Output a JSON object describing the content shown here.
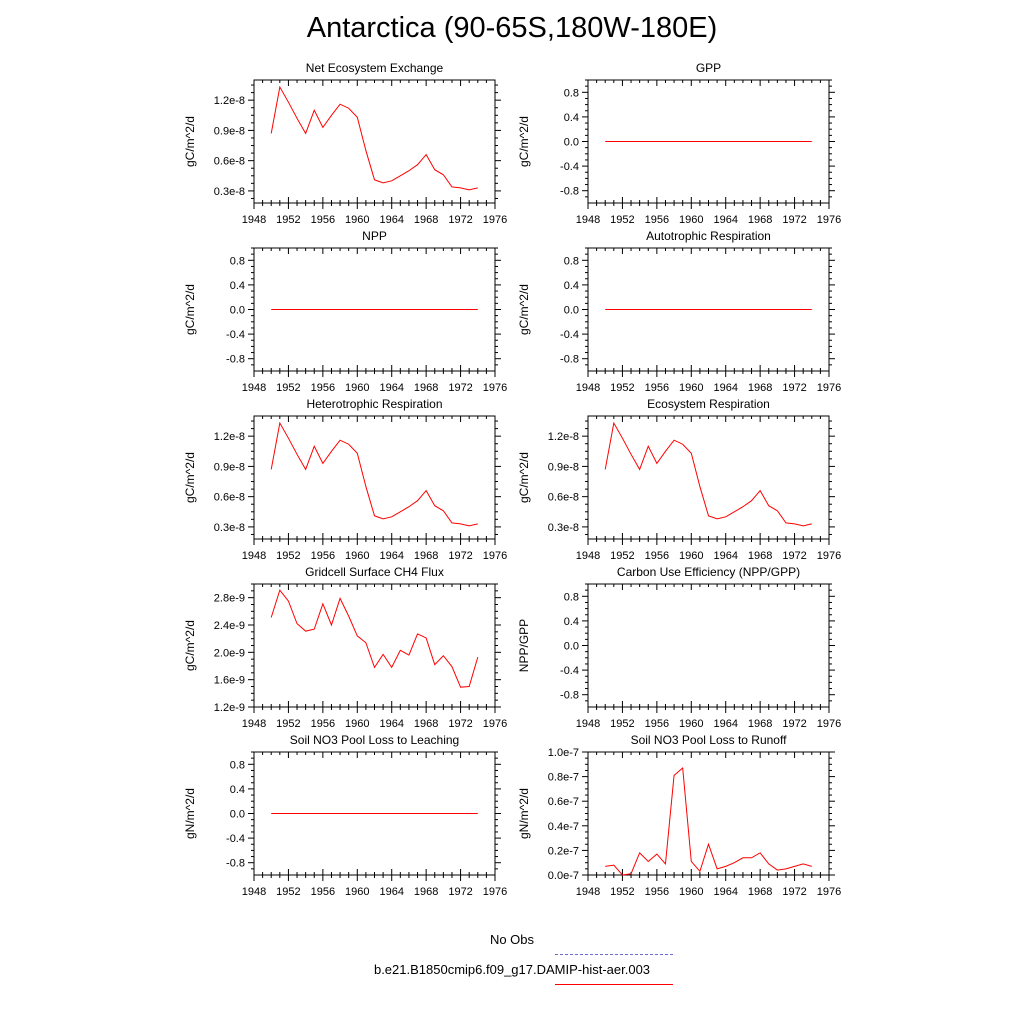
{
  "title": "Antarctica (90-65S,180W-180E)",
  "legend": {
    "obs_label": "No Obs",
    "obs_color": "#6b6bd6",
    "run_label": "b.e21.B1850cmip6.f09_g17.DAMIP-hist-aer.003",
    "run_color": "#ff0000"
  },
  "chart_data": [
    {
      "type": "line",
      "title": "Net Ecosystem Exchange",
      "ylabel": "gC/m^2/d",
      "xlim": [
        1948,
        1976
      ],
      "xticks": [
        "1948",
        "1952",
        "1956",
        "1960",
        "1964",
        "1968",
        "1972",
        "1976"
      ],
      "ylim": [
        1.8e-09,
        1.4e-08
      ],
      "yticks": [
        {
          "v": 3e-09,
          "label": "0.3e-8"
        },
        {
          "v": 6e-09,
          "label": "0.6e-8"
        },
        {
          "v": 9e-09,
          "label": "0.9e-8"
        },
        {
          "v": 1.2e-08,
          "label": "1.2e-8"
        }
      ],
      "series": [
        {
          "color": "#ff0000",
          "x": [
            1950,
            1951,
            1952,
            1953,
            1954,
            1955,
            1956,
            1957,
            1958,
            1959,
            1960,
            1961,
            1962,
            1963,
            1964,
            1965,
            1966,
            1967,
            1968,
            1969,
            1970,
            1971,
            1972,
            1973,
            1974
          ],
          "values": [
            8.7e-09,
            1.33e-08,
            1.18e-08,
            1.02e-08,
            8.7e-09,
            1.1e-08,
            9.3e-09,
            1.05e-08,
            1.16e-08,
            1.12e-08,
            1.03e-08,
            7e-09,
            4.1e-09,
            3.8e-09,
            4e-09,
            4.5e-09,
            5e-09,
            5.6e-09,
            6.6e-09,
            5.1e-09,
            4.6e-09,
            3.4e-09,
            3.3e-09,
            3.1e-09,
            3.3e-09
          ]
        }
      ]
    },
    {
      "type": "line",
      "title": "GPP",
      "ylabel": "gC/m^2/d",
      "xlim": [
        1948,
        1976
      ],
      "xticks": [
        "1948",
        "1952",
        "1956",
        "1960",
        "1964",
        "1968",
        "1972",
        "1976"
      ],
      "ylim": [
        -1.0,
        1.0
      ],
      "yticks": [
        {
          "v": -0.8,
          "label": "-0.8"
        },
        {
          "v": -0.4,
          "label": "-0.4"
        },
        {
          "v": 0,
          "label": "0.0"
        },
        {
          "v": 0.4,
          "label": "0.4"
        },
        {
          "v": 0.8,
          "label": "0.8"
        }
      ],
      "series": [
        {
          "color": "#ff0000",
          "x": [
            1950,
            1974
          ],
          "values": [
            0,
            0
          ]
        }
      ]
    },
    {
      "type": "line",
      "title": "NPP",
      "ylabel": "gC/m^2/d",
      "xlim": [
        1948,
        1976
      ],
      "xticks": [
        "1948",
        "1952",
        "1956",
        "1960",
        "1964",
        "1968",
        "1972",
        "1976"
      ],
      "ylim": [
        -1.0,
        1.0
      ],
      "yticks": [
        {
          "v": -0.8,
          "label": "-0.8"
        },
        {
          "v": -0.4,
          "label": "-0.4"
        },
        {
          "v": 0,
          "label": "0.0"
        },
        {
          "v": 0.4,
          "label": "0.4"
        },
        {
          "v": 0.8,
          "label": "0.8"
        }
      ],
      "series": [
        {
          "color": "#ff0000",
          "x": [
            1950,
            1974
          ],
          "values": [
            0,
            0
          ]
        }
      ]
    },
    {
      "type": "line",
      "title": "Autotrophic Respiration",
      "ylabel": "gC/m^2/d",
      "xlim": [
        1948,
        1976
      ],
      "xticks": [
        "1948",
        "1952",
        "1956",
        "1960",
        "1964",
        "1968",
        "1972",
        "1976"
      ],
      "ylim": [
        -1.0,
        1.0
      ],
      "yticks": [
        {
          "v": -0.8,
          "label": "-0.8"
        },
        {
          "v": -0.4,
          "label": "-0.4"
        },
        {
          "v": 0,
          "label": "0.0"
        },
        {
          "v": 0.4,
          "label": "0.4"
        },
        {
          "v": 0.8,
          "label": "0.8"
        }
      ],
      "series": [
        {
          "color": "#ff0000",
          "x": [
            1950,
            1974
          ],
          "values": [
            0,
            0
          ]
        }
      ]
    },
    {
      "type": "line",
      "title": "Heterotrophic Respiration",
      "ylabel": "gC/m^2/d",
      "xlim": [
        1948,
        1976
      ],
      "xticks": [
        "1948",
        "1952",
        "1956",
        "1960",
        "1964",
        "1968",
        "1972",
        "1976"
      ],
      "ylim": [
        1.8e-09,
        1.4e-08
      ],
      "yticks": [
        {
          "v": 3e-09,
          "label": "0.3e-8"
        },
        {
          "v": 6e-09,
          "label": "0.6e-8"
        },
        {
          "v": 9e-09,
          "label": "0.9e-8"
        },
        {
          "v": 1.2e-08,
          "label": "1.2e-8"
        }
      ],
      "series": [
        {
          "color": "#ff0000",
          "x": [
            1950,
            1951,
            1952,
            1953,
            1954,
            1955,
            1956,
            1957,
            1958,
            1959,
            1960,
            1961,
            1962,
            1963,
            1964,
            1965,
            1966,
            1967,
            1968,
            1969,
            1970,
            1971,
            1972,
            1973,
            1974
          ],
          "values": [
            8.7e-09,
            1.33e-08,
            1.18e-08,
            1.02e-08,
            8.7e-09,
            1.1e-08,
            9.3e-09,
            1.05e-08,
            1.16e-08,
            1.12e-08,
            1.03e-08,
            7e-09,
            4.1e-09,
            3.8e-09,
            4e-09,
            4.5e-09,
            5e-09,
            5.6e-09,
            6.6e-09,
            5.1e-09,
            4.6e-09,
            3.4e-09,
            3.3e-09,
            3.1e-09,
            3.3e-09
          ]
        }
      ]
    },
    {
      "type": "line",
      "title": "Ecosystem Respiration",
      "ylabel": "gC/m^2/d",
      "xlim": [
        1948,
        1976
      ],
      "xticks": [
        "1948",
        "1952",
        "1956",
        "1960",
        "1964",
        "1968",
        "1972",
        "1976"
      ],
      "ylim": [
        1.8e-09,
        1.4e-08
      ],
      "yticks": [
        {
          "v": 3e-09,
          "label": "0.3e-8"
        },
        {
          "v": 6e-09,
          "label": "0.6e-8"
        },
        {
          "v": 9e-09,
          "label": "0.9e-8"
        },
        {
          "v": 1.2e-08,
          "label": "1.2e-8"
        }
      ],
      "series": [
        {
          "color": "#ff0000",
          "x": [
            1950,
            1951,
            1952,
            1953,
            1954,
            1955,
            1956,
            1957,
            1958,
            1959,
            1960,
            1961,
            1962,
            1963,
            1964,
            1965,
            1966,
            1967,
            1968,
            1969,
            1970,
            1971,
            1972,
            1973,
            1974
          ],
          "values": [
            8.7e-09,
            1.33e-08,
            1.18e-08,
            1.02e-08,
            8.7e-09,
            1.1e-08,
            9.3e-09,
            1.05e-08,
            1.16e-08,
            1.12e-08,
            1.03e-08,
            7e-09,
            4.1e-09,
            3.8e-09,
            4e-09,
            4.5e-09,
            5e-09,
            5.6e-09,
            6.6e-09,
            5.1e-09,
            4.6e-09,
            3.4e-09,
            3.3e-09,
            3.1e-09,
            3.3e-09
          ]
        }
      ]
    },
    {
      "type": "line",
      "title": "Gridcell Surface CH4 Flux",
      "ylabel": "gC/m^2/d",
      "xlim": [
        1948,
        1976
      ],
      "xticks": [
        "1948",
        "1952",
        "1956",
        "1960",
        "1964",
        "1968",
        "1972",
        "1976"
      ],
      "ylim": [
        1.2e-09,
        3e-09
      ],
      "yticks": [
        {
          "v": 1.2e-09,
          "label": "1.2e-9"
        },
        {
          "v": 1.6e-09,
          "label": "1.6e-9"
        },
        {
          "v": 2e-09,
          "label": "2.0e-9"
        },
        {
          "v": 2.4e-09,
          "label": "2.4e-9"
        },
        {
          "v": 2.8e-09,
          "label": "2.8e-9"
        }
      ],
      "series": [
        {
          "color": "#ff0000",
          "x": [
            1950,
            1951,
            1952,
            1953,
            1954,
            1955,
            1956,
            1957,
            1958,
            1959,
            1960,
            1961,
            1962,
            1963,
            1964,
            1965,
            1966,
            1967,
            1968,
            1969,
            1970,
            1971,
            1972,
            1973,
            1974
          ],
          "values": [
            2.51e-09,
            2.91e-09,
            2.75e-09,
            2.42e-09,
            2.31e-09,
            2.34e-09,
            2.71e-09,
            2.4e-09,
            2.79e-09,
            2.53e-09,
            2.24e-09,
            2.14e-09,
            1.78e-09,
            1.97e-09,
            1.78e-09,
            2.03e-09,
            1.96e-09,
            2.27e-09,
            2.21e-09,
            1.82e-09,
            1.95e-09,
            1.79e-09,
            1.49e-09,
            1.5e-09,
            1.93e-09
          ]
        }
      ]
    },
    {
      "type": "line",
      "title": "Carbon Use Efficiency (NPP/GPP)",
      "ylabel": "NPP/GPP",
      "xlim": [
        1948,
        1976
      ],
      "xticks": [
        "1948",
        "1952",
        "1956",
        "1960",
        "1964",
        "1968",
        "1972",
        "1976"
      ],
      "ylim": [
        -1.0,
        1.0
      ],
      "yticks": [
        {
          "v": -0.8,
          "label": "-0.8"
        },
        {
          "v": -0.4,
          "label": "-0.4"
        },
        {
          "v": 0,
          "label": "0.0"
        },
        {
          "v": 0.4,
          "label": "0.4"
        },
        {
          "v": 0.8,
          "label": "0.8"
        }
      ],
      "series": []
    },
    {
      "type": "line",
      "title": "Soil NO3 Pool Loss to Leaching",
      "ylabel": "gN/m^2/d",
      "xlim": [
        1948,
        1976
      ],
      "xticks": [
        "1948",
        "1952",
        "1956",
        "1960",
        "1964",
        "1968",
        "1972",
        "1976"
      ],
      "ylim": [
        -1.0,
        1.0
      ],
      "yticks": [
        {
          "v": -0.8,
          "label": "-0.8"
        },
        {
          "v": -0.4,
          "label": "-0.4"
        },
        {
          "v": 0,
          "label": "0.0"
        },
        {
          "v": 0.4,
          "label": "0.4"
        },
        {
          "v": 0.8,
          "label": "0.8"
        }
      ],
      "series": [
        {
          "color": "#ff0000",
          "x": [
            1950,
            1974
          ],
          "values": [
            0,
            0
          ]
        }
      ]
    },
    {
      "type": "line",
      "title": "Soil NO3 Pool Loss to Runoff",
      "ylabel": "gN/m^2/d",
      "xlim": [
        1948,
        1976
      ],
      "xticks": [
        "1948",
        "1952",
        "1956",
        "1960",
        "1964",
        "1968",
        "1972",
        "1976"
      ],
      "ylim": [
        0,
        1e-07
      ],
      "yticks": [
        {
          "v": 0,
          "label": "0.0e-7"
        },
        {
          "v": 2e-08,
          "label": "0.2e-7"
        },
        {
          "v": 4e-08,
          "label": "0.4e-7"
        },
        {
          "v": 6e-08,
          "label": "0.6e-7"
        },
        {
          "v": 8e-08,
          "label": "0.8e-7"
        },
        {
          "v": 1e-07,
          "label": "1.0e-7"
        }
      ],
      "series": [
        {
          "color": "#ff0000",
          "x": [
            1950,
            1951,
            1952,
            1953,
            1954,
            1955,
            1956,
            1957,
            1958,
            1959,
            1960,
            1961,
            1962,
            1963,
            1964,
            1965,
            1966,
            1967,
            1968,
            1969,
            1970,
            1971,
            1972,
            1973,
            1974
          ],
          "values": [
            7e-09,
            8e-09,
            0.0,
            1e-09,
            1.8e-08,
            1.1e-08,
            1.7e-08,
            9e-09,
            8.1e-08,
            8.7e-08,
            1.1e-08,
            3e-09,
            2.5e-08,
            5e-09,
            7e-09,
            1e-08,
            1.4e-08,
            1.4e-08,
            1.8e-08,
            9e-09,
            4e-09,
            5e-09,
            7e-09,
            9e-09,
            7e-09
          ]
        }
      ]
    }
  ]
}
